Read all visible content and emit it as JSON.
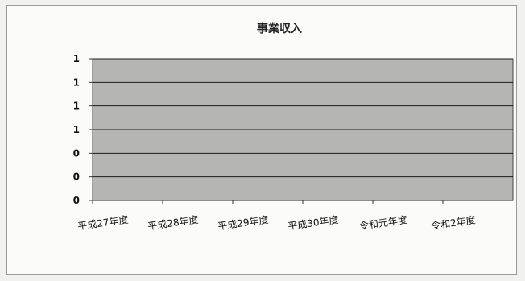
{
  "chart_data": {
    "type": "bar",
    "title": "事業収入",
    "categories": [
      "平成27年度",
      "平成28年度",
      "平成29年度",
      "平成30年度",
      "令和元年度",
      "令和2年度"
    ],
    "series": [
      {
        "values": [
          0,
          0,
          0,
          0,
          0,
          0
        ]
      }
    ],
    "y_tick_labels": [
      "0",
      "0",
      "0",
      "1",
      "1",
      "1",
      "1"
    ],
    "ylim": [
      0,
      1
    ],
    "grid": true,
    "legend": "none",
    "colors": {
      "plot_area": "#b5b5b3",
      "grid_line": "#1c1c1c",
      "frame": "#9a9a9a"
    }
  }
}
